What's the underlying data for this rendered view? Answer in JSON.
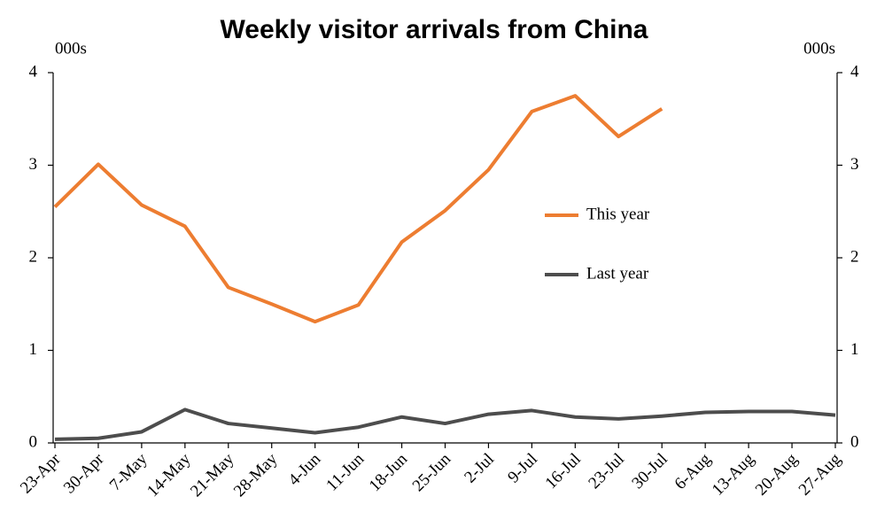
{
  "chart_data": {
    "type": "line",
    "title": "Weekly visitor arrivals from China",
    "y_label": "000s",
    "y2_label": "000s",
    "categories": [
      "23-Apr",
      "30-Apr",
      "7-May",
      "14-May",
      "21-May",
      "28-May",
      "4-Jun",
      "11-Jun",
      "18-Jun",
      "25-Jun",
      "2-Jul",
      "9-Jul",
      "16-Jul",
      "23-Jul",
      "30-Jul",
      "6-Aug",
      "13-Aug",
      "20-Aug",
      "27-Aug"
    ],
    "series": [
      {
        "name": "This year",
        "color": "#ed7d31",
        "values": [
          2.55,
          3.01,
          2.57,
          2.34,
          1.68,
          1.5,
          1.31,
          1.49,
          2.17,
          2.51,
          2.95,
          3.58,
          3.75,
          3.31,
          3.61,
          null,
          null,
          null,
          null
        ]
      },
      {
        "name": "Last year",
        "color": "#4d4d4d",
        "values": [
          0.04,
          0.05,
          0.12,
          0.36,
          0.21,
          0.16,
          0.11,
          0.17,
          0.28,
          0.21,
          0.31,
          0.35,
          0.28,
          0.26,
          0.29,
          0.33,
          0.34,
          0.34,
          0.3
        ]
      }
    ],
    "ylim": [
      0,
      4
    ],
    "yticks": [
      0,
      1,
      2,
      3,
      4
    ],
    "y2lim": [
      0,
      4
    ],
    "y2ticks": [
      0,
      1,
      2,
      3,
      4
    ],
    "legend_position": "right",
    "grid": false
  }
}
